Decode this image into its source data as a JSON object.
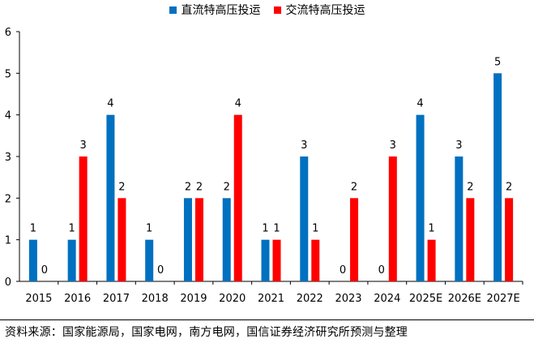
{
  "chart_data": {
    "type": "bar",
    "title": "",
    "xlabel": "",
    "ylabel": "",
    "ylim": [
      0,
      6
    ],
    "yticks": [
      "0",
      "1",
      "2",
      "3",
      "4",
      "5",
      "6"
    ],
    "categories": [
      "2015",
      "2016",
      "2017",
      "2018",
      "2019",
      "2020",
      "2021",
      "2022",
      "2023",
      "2024",
      "2025E",
      "2026E",
      "2027E"
    ],
    "series": [
      {
        "name": "直流特高压投运",
        "color": "#0070C0",
        "values": [
          1,
          1,
          4,
          1,
          2,
          2,
          1,
          3,
          0,
          0,
          4,
          3,
          5
        ]
      },
      {
        "name": "交流特高压投运",
        "color": "#FF0000",
        "values": [
          0,
          3,
          2,
          0,
          2,
          4,
          1,
          1,
          2,
          3,
          1,
          2,
          2
        ]
      }
    ],
    "legend_position": "top-center",
    "data_labels": true,
    "grid": false
  },
  "source_note": "资料来源：国家能源局，国家电网，南方电网，国信证券经济研究所预测与整理"
}
